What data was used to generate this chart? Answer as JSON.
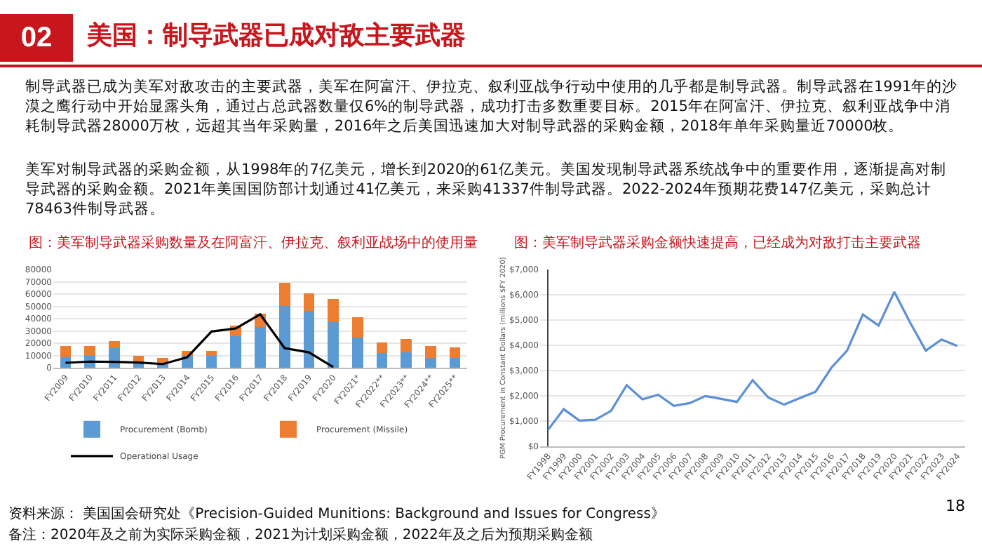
{
  "chart_data": [
    {
      "type": "other",
      "title": "美国：制导武器已成对敌主要武器",
      "annotations": [
        "02",
        "制导武器已成为美军对敌攻击的主要武器，美军在阿富汗、伊拉克、叙利亚战争行动中使用的几乎都是制导武器。制导武器在1991年的沙漠之鹰行动中开始显露头角，通过占总武器数量仅6%的制导武器，成功打击多数重要目标。2015年在阿富汗、伊拉克、叙利亚战争中消耗制导武器28000万枚，远超其当年采购量，2016年之后美国迅速加大对制导武器的采购金额，2018年单年采购量近70000枚。",
        "美军对制导武器的采购金额，从1998年的7亿美元，增长到2020的61亿美元。美国发现制导武器系统战争中的重要作用，逐渐提高对制导武器的采购金额。2021年美国国防部计划通过41亿美元，来采购41337件制导武器。2022-2024年预期花费147亿美元，采购总计78463件制导武器。",
        "资料来源： 美国国会研究处《Precision-Guided Munitions: Background and Issues for Congress》",
        "备注：2020年及之前为实际采购金额，2021为计划采购金额，2022年及之后为预期采购金额",
        "18"
      ]
    },
    {
      "type": "bar",
      "title": "图：美军制导武器采购数量及在阿富汗、伊拉克、叙利亚战场中的使用量",
      "stacked": true,
      "grid": "y",
      "legend": "bottom",
      "categories": [
        "FY2009",
        "FY2010",
        "FY2011",
        "FY2012",
        "FY2013",
        "FY2014",
        "FY2015",
        "FY2016",
        "FY2017",
        "FY2018",
        "FY2019",
        "FY2020",
        "FY2021*",
        "FY2022**",
        "FY2023**",
        "FY2024**",
        "FY2025**"
      ],
      "ylim": [
        0,
        80000
      ],
      "yticks": [
        0,
        10000,
        20000,
        30000,
        40000,
        50000,
        60000,
        70000,
        80000
      ],
      "series": [
        {
          "name": "Procurement (Bomb)",
          "color": "#5b9bd5",
          "values": [
            8500,
            10000,
            16000,
            4000,
            3000,
            10000,
            9500,
            26000,
            33000,
            50500,
            46500,
            37000,
            24500,
            12000,
            12500,
            8000,
            8000
          ]
        },
        {
          "name": "Procurement (Missile)",
          "color": "#ed7d31",
          "values": [
            9000,
            8000,
            6000,
            6000,
            5000,
            4000,
            4500,
            8500,
            11000,
            18500,
            14000,
            19000,
            16500,
            8500,
            11000,
            10000,
            8500
          ]
        },
        {
          "name": "Operational Usage",
          "type": "line",
          "color": "#000000",
          "values": [
            4000,
            5000,
            4800,
            4200,
            3000,
            8500,
            29500,
            32000,
            43500,
            16000,
            12500,
            500,
            null,
            null,
            null,
            null,
            null
          ]
        }
      ]
    },
    {
      "type": "line",
      "title": "图：美军制导武器采购金额快速提高，已经成为对敌打击主要武器",
      "ylabel": "PGM Procurement in Constant Dollars (millions $FY 2020)",
      "grid": "y",
      "marker": "none",
      "categories": [
        "FY1998",
        "FY1999",
        "FY2000",
        "FY2001",
        "FY2002",
        "FY2003",
        "FY2004",
        "FY2005",
        "FY2006",
        "FY2007",
        "FY2008",
        "FY2009",
        "FY2010",
        "FY2011",
        "FY2012",
        "FY2013",
        "FY2014",
        "FY2015",
        "FY2016",
        "FY2017",
        "FY2018",
        "FY2019",
        "FY2020",
        "FY2021",
        "FY2022",
        "FY2023",
        "FY2024"
      ],
      "ylim": [
        0,
        7000
      ],
      "yticks": [
        {
          "value": 0,
          "label": "$0"
        },
        {
          "value": 1000,
          "label": "$1,000"
        },
        {
          "value": 2000,
          "label": "$2,000"
        },
        {
          "value": 3000,
          "label": "$3,000"
        },
        {
          "value": 4000,
          "label": "$4,000"
        },
        {
          "value": 5000,
          "label": "$5,000"
        },
        {
          "value": 6000,
          "label": "$6,000"
        },
        {
          "value": 7000,
          "label": "$7,000"
        }
      ],
      "series": [
        {
          "color": "#5b8fd6",
          "values": [
            650,
            1470,
            1020,
            1050,
            1400,
            2420,
            1860,
            2040,
            1600,
            1710,
            1990,
            1880,
            1760,
            2620,
            1930,
            1650,
            1910,
            2160,
            3110,
            3790,
            5220,
            4780,
            6110,
            4900,
            3790,
            4230,
            3970
          ]
        }
      ]
    }
  ]
}
